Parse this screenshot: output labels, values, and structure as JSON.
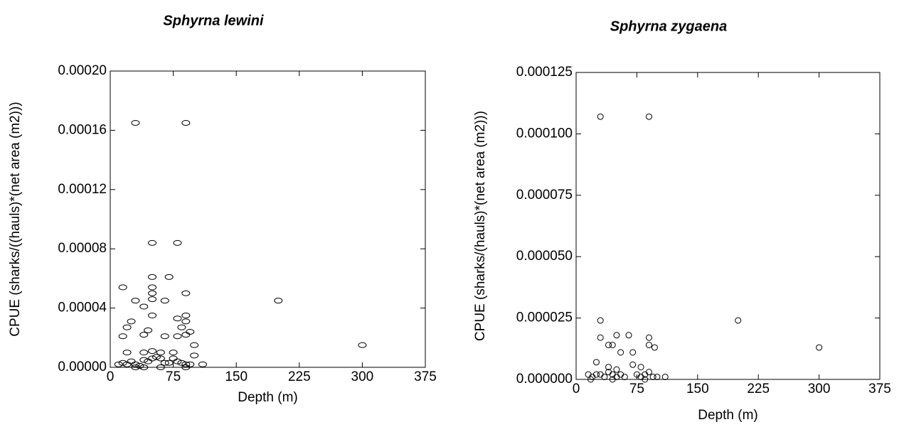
{
  "chart_data": [
    {
      "type": "scatter",
      "title": "Sphyrna lewini",
      "x_label": "Depth (m)",
      "y_label": "CPUE (sharks/((hauls)*(net area (m2)))",
      "x": [
        30,
        90,
        50,
        80,
        50,
        70,
        15,
        50,
        50,
        90,
        30,
        50,
        65,
        200,
        40,
        50,
        90,
        80,
        25,
        90,
        20,
        45,
        85,
        95,
        15,
        40,
        65,
        80,
        90,
        300,
        100,
        20,
        40,
        50,
        60,
        75,
        100,
        10,
        15,
        20,
        25,
        30,
        35,
        40,
        45,
        50,
        55,
        60,
        65,
        70,
        75,
        80,
        85,
        90,
        95,
        110,
        40,
        60,
        30,
        90
      ],
      "values": [
        0.000165,
        0.000165,
        8.4e-05,
        8.4e-05,
        6.1e-05,
        6.1e-05,
        5.4e-05,
        5.4e-05,
        5e-05,
        5e-05,
        4.5e-05,
        4.6e-05,
        4.5e-05,
        4.5e-05,
        4.1e-05,
        3.5e-05,
        3.5e-05,
        3.3e-05,
        3.1e-05,
        3.1e-05,
        2.7e-05,
        2.5e-05,
        2.7e-05,
        2.4e-05,
        2.1e-05,
        2.2e-05,
        2.1e-05,
        2.1e-05,
        2.2e-05,
        1.5e-05,
        1.5e-05,
        1e-05,
        1e-05,
        1.1e-05,
        1e-05,
        1e-05,
        8e-06,
        2e-06,
        3e-06,
        2e-06,
        4e-06,
        2e-06,
        1e-06,
        5e-06,
        4e-06,
        6e-06,
        7e-06,
        6e-06,
        3e-06,
        3e-06,
        6e-06,
        4e-06,
        3e-06,
        2e-06,
        2e-06,
        2e-06,
        0,
        0,
        0,
        0
      ],
      "xlim": [
        0,
        375
      ],
      "xticks": [
        0,
        75,
        150,
        225,
        300,
        375
      ],
      "ylim": [
        0,
        0.0002
      ],
      "yticks": [
        {
          "value": 0,
          "label": "0.00000"
        },
        {
          "value": 4e-05,
          "label": "0.00004"
        },
        {
          "value": 8e-05,
          "label": "0.00008"
        },
        {
          "value": 0.00012,
          "label": "0.00012"
        },
        {
          "value": 0.00016,
          "label": "0.00016"
        },
        {
          "value": 0.0002,
          "label": "0.00020"
        }
      ],
      "color": "#000000"
    },
    {
      "type": "scatter",
      "title": "Sphyrna zygaena",
      "x_label": "Depth (m)",
      "y_label": "CPUE (sharks/(hauls)*(net area (m2)))",
      "x": [
        30,
        90,
        30,
        200,
        300,
        30,
        90,
        65,
        50,
        40,
        45,
        90,
        97,
        55,
        70,
        25,
        40,
        70,
        50,
        80,
        15,
        20,
        25,
        30,
        35,
        40,
        45,
        50,
        55,
        60,
        75,
        80,
        85,
        90,
        95,
        100,
        110,
        18,
        45,
        85
      ],
      "values": [
        0.000107,
        0.000107,
        2.4e-05,
        2.4e-05,
        1.3e-05,
        1.7e-05,
        1.7e-05,
        1.8e-05,
        1.8e-05,
        1.4e-05,
        1.4e-05,
        1.4e-05,
        1.3e-05,
        1.1e-05,
        1.1e-05,
        7e-06,
        5e-06,
        6e-06,
        4e-06,
        5e-06,
        2e-06,
        1e-06,
        2e-06,
        2e-06,
        1e-06,
        3e-06,
        2e-06,
        1e-06,
        2e-06,
        1e-06,
        2e-06,
        1e-06,
        2e-06,
        3e-06,
        1e-06,
        1e-06,
        1e-06,
        0,
        0,
        0
      ],
      "xlim": [
        0,
        375
      ],
      "xticks": [
        0,
        75,
        150,
        225,
        300,
        375
      ],
      "ylim": [
        0,
        0.000125
      ],
      "yticks": [
        {
          "value": 0,
          "label": "0.000000"
        },
        {
          "value": 2.5e-05,
          "label": "0.000025"
        },
        {
          "value": 5e-05,
          "label": "0.000050"
        },
        {
          "value": 7.5e-05,
          "label": "0.000075"
        },
        {
          "value": 0.0001,
          "label": "0.000100"
        },
        {
          "value": 0.000125,
          "label": "0.000125"
        }
      ],
      "color": "#000000"
    }
  ]
}
